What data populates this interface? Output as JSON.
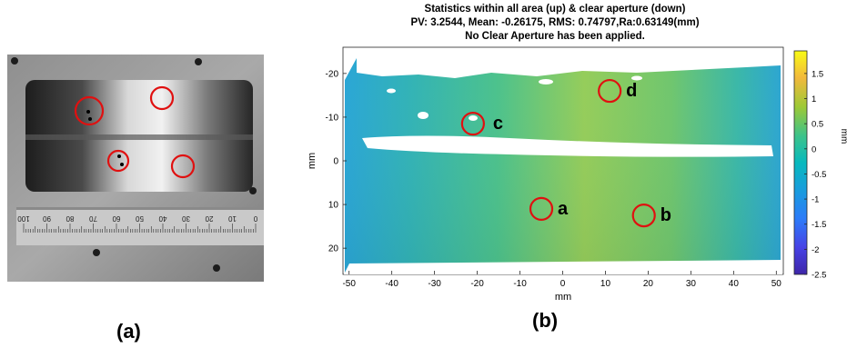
{
  "panel_a": {
    "caption": "(a)",
    "ruler_labels": [
      "100",
      "90",
      "80",
      "70",
      "60",
      "50",
      "40",
      "30",
      "20",
      "10",
      "0"
    ]
  },
  "panel_b": {
    "caption": "(b)",
    "title_lines": [
      "Statistics within all area (up) & clear aperture (down)",
      "PV: 3.2544, Mean: -0.26175, RMS: 0.74797,Ra:0.63149(mm)",
      "No Clear Aperture has been applied."
    ],
    "xlabel": "mm",
    "ylabel": "mm",
    "colorbar_label": "mm",
    "xticks": [
      "-50",
      "-40",
      "-30",
      "-20",
      "-10",
      "0",
      "10",
      "20",
      "30",
      "40",
      "50"
    ],
    "yticks": [
      "-20",
      "-10",
      "0",
      "10",
      "20"
    ],
    "cticks": [
      "1.5",
      "1",
      "0.5",
      "0",
      "-0.5",
      "-1",
      "-1.5",
      "-2",
      "-2.5"
    ],
    "markers": [
      {
        "label": "a",
        "x": -5,
        "y": 11
      },
      {
        "label": "b",
        "x": 19,
        "y": 12.5
      },
      {
        "label": "c",
        "x": -21,
        "y": -8.5
      },
      {
        "label": "d",
        "x": 11,
        "y": -16
      }
    ]
  },
  "colors": {
    "marker": "#e01010"
  }
}
